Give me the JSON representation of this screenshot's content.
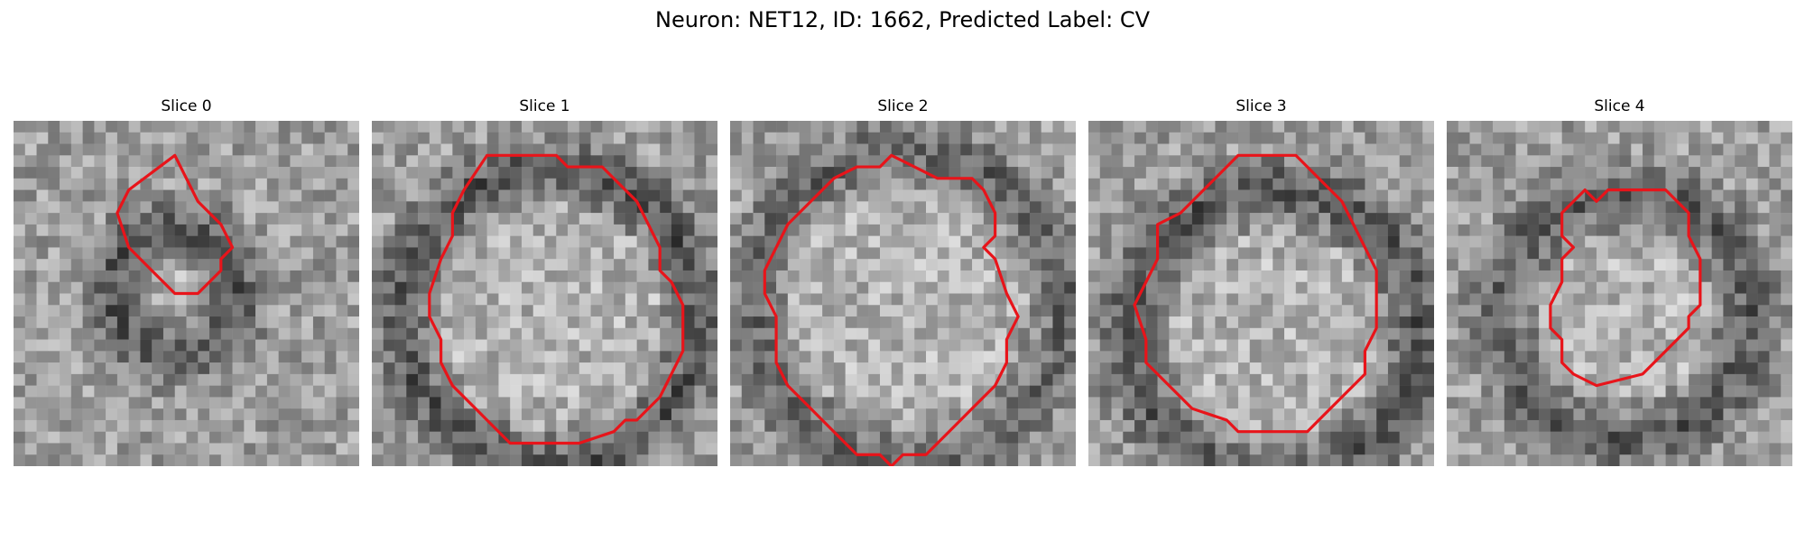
{
  "figure": {
    "title": "Neuron: NET12, ID: 1662, Predicted Label: CV",
    "contour_color": "#e8141a"
  },
  "slices": [
    {
      "title": "Slice 0",
      "texture": {
        "dark_ring": [
          0.45,
          0.48,
          0.1,
          0.26,
          1.0
        ],
        "seed": 11
      },
      "contour": [
        [
          14,
          3
        ],
        [
          10,
          6
        ],
        [
          9,
          8
        ],
        [
          10,
          11
        ],
        [
          12,
          13
        ],
        [
          14,
          15
        ],
        [
          16,
          15
        ],
        [
          18,
          13
        ],
        [
          18,
          12
        ],
        [
          19,
          11
        ],
        [
          18,
          9
        ],
        [
          16,
          7
        ]
      ]
    },
    {
      "title": "Slice 1",
      "texture": {
        "dark_ring": [
          0.5,
          0.55,
          0.36,
          0.5,
          1.0
        ],
        "seed": 23
      },
      "contour": [
        [
          10,
          3
        ],
        [
          16,
          3
        ],
        [
          17,
          4
        ],
        [
          20,
          4
        ],
        [
          23,
          7
        ],
        [
          24,
          9
        ],
        [
          25,
          11
        ],
        [
          25,
          13
        ],
        [
          26,
          14
        ],
        [
          27,
          16
        ],
        [
          27,
          20
        ],
        [
          26,
          22
        ],
        [
          25,
          24
        ],
        [
          24,
          25
        ],
        [
          23,
          26
        ],
        [
          22,
          26
        ],
        [
          21,
          27
        ],
        [
          18,
          28
        ],
        [
          15,
          28
        ],
        [
          12,
          28
        ],
        [
          11,
          27
        ],
        [
          9,
          25
        ],
        [
          7,
          23
        ],
        [
          6,
          21
        ],
        [
          6,
          19
        ],
        [
          5,
          17
        ],
        [
          5,
          15
        ],
        [
          6,
          12
        ],
        [
          7,
          10
        ],
        [
          7,
          8
        ],
        [
          8,
          6
        ]
      ]
    },
    {
      "title": "Slice 2",
      "texture": {
        "dark_ring": [
          0.5,
          0.52,
          0.38,
          0.52,
          0.8
        ],
        "seed": 37
      },
      "contour": [
        [
          14,
          3
        ],
        [
          16,
          4
        ],
        [
          18,
          5
        ],
        [
          21,
          5
        ],
        [
          22,
          6
        ],
        [
          23,
          8
        ],
        [
          23,
          10
        ],
        [
          22,
          11
        ],
        [
          23,
          12
        ],
        [
          24,
          15
        ],
        [
          25,
          17
        ],
        [
          24,
          19
        ],
        [
          24,
          21
        ],
        [
          23,
          23
        ],
        [
          22,
          24
        ],
        [
          21,
          25
        ],
        [
          19,
          27
        ],
        [
          17,
          29
        ],
        [
          15,
          29
        ],
        [
          14,
          30
        ],
        [
          13,
          29
        ],
        [
          11,
          29
        ],
        [
          9,
          27
        ],
        [
          7,
          25
        ],
        [
          5,
          23
        ],
        [
          4,
          21
        ],
        [
          4,
          17
        ],
        [
          3,
          15
        ],
        [
          3,
          13
        ],
        [
          4,
          11
        ],
        [
          5,
          9
        ],
        [
          7,
          7
        ],
        [
          9,
          5
        ],
        [
          11,
          4
        ],
        [
          13,
          4
        ]
      ]
    },
    {
      "title": "Slice 3",
      "texture": {
        "dark_ring": [
          0.52,
          0.6,
          0.34,
          0.5,
          1.0
        ],
        "seed": 53
      },
      "contour": [
        [
          13,
          3
        ],
        [
          18,
          3
        ],
        [
          20,
          5
        ],
        [
          22,
          7
        ],
        [
          23,
          9
        ],
        [
          24,
          11
        ],
        [
          25,
          13
        ],
        [
          25,
          18
        ],
        [
          24,
          20
        ],
        [
          24,
          22
        ],
        [
          22,
          24
        ],
        [
          21,
          25
        ],
        [
          20,
          26
        ],
        [
          19,
          27
        ],
        [
          13,
          27
        ],
        [
          12,
          26
        ],
        [
          9,
          25
        ],
        [
          7,
          23
        ],
        [
          5,
          21
        ],
        [
          5,
          19
        ],
        [
          4,
          16
        ],
        [
          5,
          14
        ],
        [
          6,
          12
        ],
        [
          6,
          9
        ],
        [
          8,
          8
        ],
        [
          10,
          6
        ],
        [
          11,
          5
        ]
      ]
    },
    {
      "title": "Slice 4",
      "texture": {
        "dark_ring": [
          0.5,
          0.55,
          0.28,
          0.44,
          0.9
        ],
        "seed": 71
      },
      "contour": [
        [
          15,
          6
        ],
        [
          19,
          6
        ],
        [
          20,
          7
        ],
        [
          21,
          8
        ],
        [
          21,
          10
        ],
        [
          22,
          12
        ],
        [
          22,
          16
        ],
        [
          21,
          17
        ],
        [
          21,
          18
        ],
        [
          19,
          20
        ],
        [
          17,
          22
        ],
        [
          13,
          23
        ],
        [
          11,
          22
        ],
        [
          10,
          21
        ],
        [
          10,
          19
        ],
        [
          9,
          18
        ],
        [
          9,
          16
        ],
        [
          10,
          14
        ],
        [
          10,
          12
        ],
        [
          11,
          11
        ],
        [
          10,
          10
        ],
        [
          10,
          8
        ],
        [
          11,
          7
        ],
        [
          12,
          6
        ],
        [
          13,
          7
        ],
        [
          14,
          6
        ]
      ]
    }
  ]
}
